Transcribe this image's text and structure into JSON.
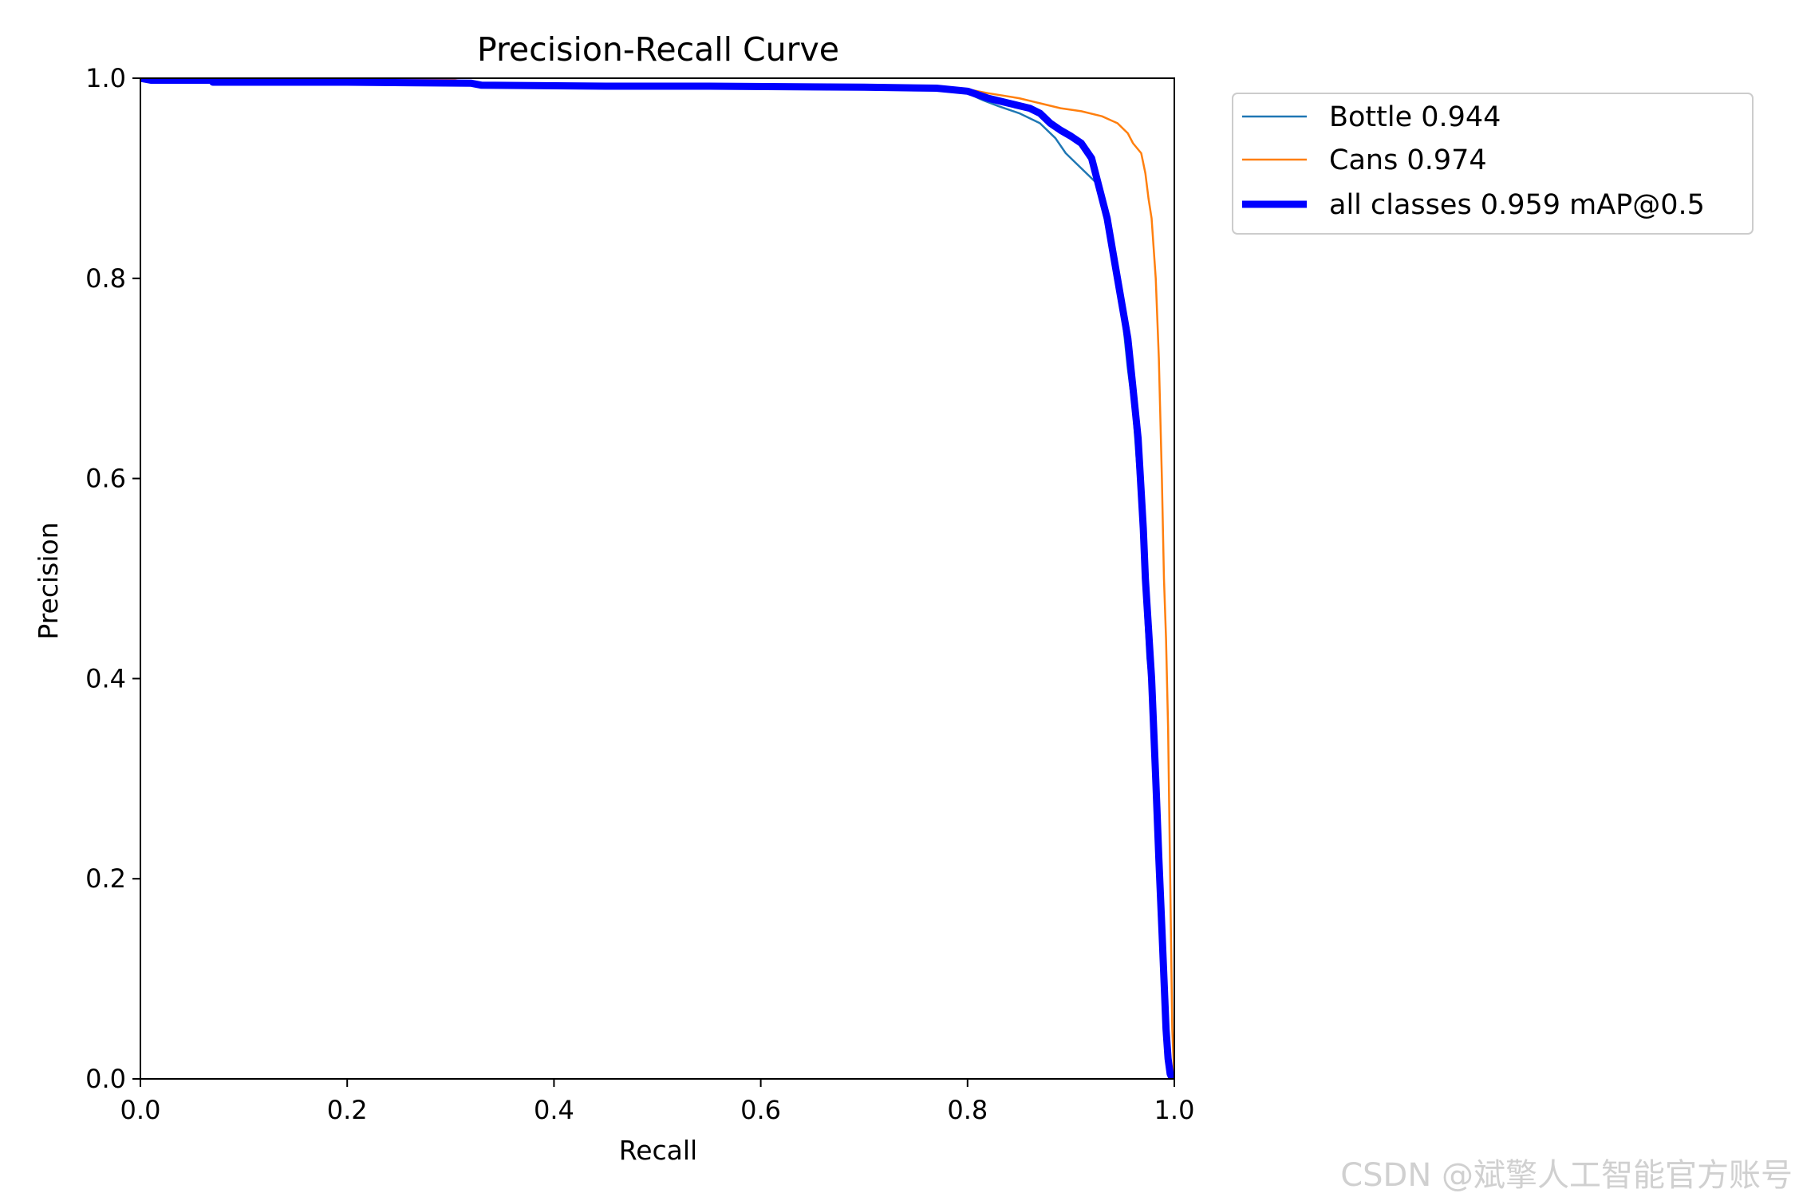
{
  "chart_data": {
    "type": "line",
    "title": "Precision-Recall Curve",
    "xlabel": "Recall",
    "ylabel": "Precision",
    "xlim": [
      0,
      1
    ],
    "ylim": [
      0,
      1
    ],
    "xticks": [
      "0.0",
      "0.2",
      "0.4",
      "0.6",
      "0.8",
      "1.0"
    ],
    "yticks": [
      "0.0",
      "0.2",
      "0.4",
      "0.6",
      "0.8",
      "1.0"
    ],
    "grid": false,
    "legend_position": "outside-top-right",
    "series": [
      {
        "name": "Bottle 0.944",
        "color": "#1f77b4",
        "style": "thin",
        "x": [
          0,
          0.01,
          0.07,
          0.07,
          0.2,
          0.32,
          0.33,
          0.45,
          0.55,
          0.7,
          0.77,
          0.8,
          0.815,
          0.83,
          0.85,
          0.87,
          0.885,
          0.895,
          0.905,
          0.915,
          0.925,
          0.93,
          0.935,
          0.94,
          0.945,
          0.95,
          0.955,
          0.96,
          0.965,
          0.97,
          0.972,
          0.974,
          0.978,
          0.982,
          0.985,
          0.988,
          0.99,
          0.992,
          0.995,
          0.997,
          1.0
        ],
        "y": [
          1.0,
          0.998,
          0.998,
          0.996,
          0.996,
          0.995,
          0.993,
          0.992,
          0.992,
          0.991,
          0.989,
          0.985,
          0.978,
          0.972,
          0.965,
          0.955,
          0.94,
          0.925,
          0.915,
          0.905,
          0.895,
          0.88,
          0.855,
          0.83,
          0.8,
          0.76,
          0.71,
          0.67,
          0.6,
          0.52,
          0.46,
          0.42,
          0.38,
          0.28,
          0.2,
          0.14,
          0.1,
          0.06,
          0.02,
          0.005,
          0.0
        ]
      },
      {
        "name": "Cans 0.974",
        "color": "#ff7f0e",
        "style": "thin",
        "x": [
          0,
          0.3,
          0.33,
          0.5,
          0.7,
          0.8,
          0.82,
          0.85,
          0.87,
          0.89,
          0.91,
          0.93,
          0.945,
          0.955,
          0.96,
          0.968,
          0.972,
          0.975,
          0.978,
          0.98,
          0.982,
          0.985,
          0.988,
          0.99,
          0.992,
          0.994,
          0.996,
          0.998,
          1.0
        ],
        "y": [
          1.0,
          0.999,
          0.994,
          0.993,
          0.992,
          0.989,
          0.985,
          0.98,
          0.975,
          0.97,
          0.967,
          0.962,
          0.955,
          0.945,
          0.935,
          0.925,
          0.905,
          0.88,
          0.86,
          0.83,
          0.8,
          0.72,
          0.6,
          0.5,
          0.44,
          0.35,
          0.2,
          0.05,
          0.0
        ]
      },
      {
        "name": "all classes 0.959 mAP@0.5",
        "color": "#0000ff",
        "style": "thick",
        "x": [
          0,
          0.01,
          0.07,
          0.07,
          0.2,
          0.32,
          0.33,
          0.45,
          0.55,
          0.7,
          0.77,
          0.8,
          0.82,
          0.84,
          0.86,
          0.87,
          0.88,
          0.89,
          0.9,
          0.91,
          0.92,
          0.925,
          0.93,
          0.935,
          0.94,
          0.945,
          0.95,
          0.955,
          0.96,
          0.965,
          0.97,
          0.972,
          0.975,
          0.978,
          0.982,
          0.985,
          0.988,
          0.99,
          0.992,
          0.994,
          0.996,
          0.998,
          1.0
        ],
        "y": [
          1.0,
          0.998,
          0.998,
          0.996,
          0.996,
          0.995,
          0.993,
          0.992,
          0.992,
          0.991,
          0.99,
          0.987,
          0.98,
          0.975,
          0.97,
          0.965,
          0.955,
          0.948,
          0.942,
          0.935,
          0.92,
          0.9,
          0.88,
          0.86,
          0.83,
          0.8,
          0.77,
          0.74,
          0.69,
          0.64,
          0.55,
          0.5,
          0.45,
          0.4,
          0.3,
          0.22,
          0.15,
          0.1,
          0.05,
          0.02,
          0.005,
          0.0,
          0.0
        ]
      }
    ]
  },
  "watermark": "CSDN @斌擎人工智能官方账号"
}
